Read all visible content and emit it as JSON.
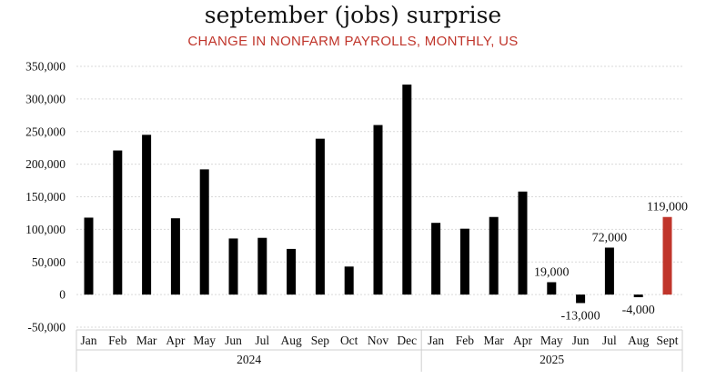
{
  "chart_data": {
    "type": "bar",
    "title": "september (jobs) surprise",
    "subtitle": "CHANGE IN NONFARM PAYROLLS, MONTHLY, US",
    "xlabel": "",
    "ylabel": "",
    "ylim": [
      -50000,
      350000
    ],
    "yticks": [
      350000,
      300000,
      250000,
      200000,
      150000,
      100000,
      50000,
      0,
      -50000
    ],
    "ytick_labels": [
      "350,000",
      "300,000",
      "250,000",
      "200,000",
      "150,000",
      "100,000",
      "50,000",
      "0",
      "-50,000"
    ],
    "grid": true,
    "categories": [
      "Jan",
      "Feb",
      "Mar",
      "Apr",
      "May",
      "Jun",
      "Jul",
      "Aug",
      "Sep",
      "Oct",
      "Nov",
      "Dec",
      "Jan",
      "Feb",
      "Mar",
      "Apr",
      "May",
      "Jun",
      "Jul",
      "Aug",
      "Sept"
    ],
    "year_groups": [
      {
        "label": "2024",
        "start": 0,
        "end": 11
      },
      {
        "label": "2025",
        "start": 12,
        "end": 20
      }
    ],
    "values": [
      118000,
      221000,
      245000,
      117000,
      192000,
      86000,
      87000,
      70000,
      239000,
      43000,
      260000,
      322000,
      110000,
      101000,
      119000,
      158000,
      19000,
      -13000,
      72000,
      -4000,
      119000
    ],
    "data_labels": [
      {
        "index": 16,
        "text": "19,000"
      },
      {
        "index": 17,
        "text": "-13,000"
      },
      {
        "index": 18,
        "text": "72,000"
      },
      {
        "index": 19,
        "text": "-4,000"
      },
      {
        "index": 20,
        "text": "119,000"
      }
    ],
    "highlight_index": 20
  },
  "colors": {
    "bar": "#000000",
    "highlight_bar": "#c0352b",
    "subtitle": "#c0352b",
    "grid": "#d9d9d9",
    "axis": "#cfcfcf",
    "text": "#111111"
  }
}
